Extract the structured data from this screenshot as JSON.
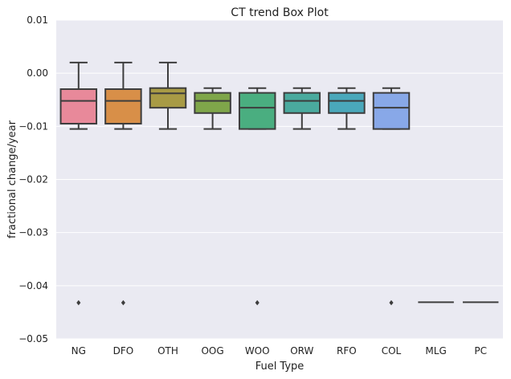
{
  "chart_data": {
    "type": "box",
    "title": "CT trend Box Plot",
    "xlabel": "Fuel Type",
    "ylabel": "fractional change/year",
    "ylim": [
      -0.05,
      0.01
    ],
    "yticks": [
      0.01,
      0.0,
      -0.01,
      -0.02,
      -0.03,
      -0.04,
      -0.05
    ],
    "ytick_labels": [
      "0.01",
      "0.00",
      "−0.01",
      "−0.02",
      "−0.03",
      "−0.04",
      "−0.05"
    ],
    "grid": true,
    "categories": [
      "NG",
      "DFO",
      "OTH",
      "OOG",
      "WOO",
      "ORW",
      "RFO",
      "COL",
      "MLG",
      "PC"
    ],
    "boxes": [
      {
        "category": "NG",
        "color": "#e8899a",
        "whisker_low": -0.0105,
        "q1": -0.0095,
        "median": -0.0052,
        "q3": -0.003,
        "whisker_high": 0.002,
        "outliers": [
          -0.0432
        ]
      },
      {
        "category": "DFO",
        "color": "#d88f48",
        "whisker_low": -0.0105,
        "q1": -0.0095,
        "median": -0.0052,
        "q3": -0.003,
        "whisker_high": 0.002,
        "outliers": [
          -0.0432
        ]
      },
      {
        "category": "OTH",
        "color": "#a89b45",
        "whisker_low": -0.0105,
        "q1": -0.0065,
        "median": -0.0038,
        "q3": -0.0028,
        "whisker_high": 0.002,
        "outliers": []
      },
      {
        "category": "OOG",
        "color": "#7fa64a",
        "whisker_low": -0.0105,
        "q1": -0.0075,
        "median": -0.0052,
        "q3": -0.0037,
        "whisker_high": -0.0028,
        "outliers": []
      },
      {
        "category": "WOO",
        "color": "#4aae80",
        "whisker_low": -0.0105,
        "q1": -0.0105,
        "median": -0.0065,
        "q3": -0.0037,
        "whisker_high": -0.0028,
        "outliers": [
          -0.0432
        ]
      },
      {
        "category": "ORW",
        "color": "#4aaa9e",
        "whisker_low": -0.0105,
        "q1": -0.0075,
        "median": -0.0052,
        "q3": -0.0037,
        "whisker_high": -0.0028,
        "outliers": []
      },
      {
        "category": "RFO",
        "color": "#4aa8bb",
        "whisker_low": -0.0105,
        "q1": -0.0075,
        "median": -0.0052,
        "q3": -0.0037,
        "whisker_high": -0.0028,
        "outliers": []
      },
      {
        "category": "COL",
        "color": "#88a8e8",
        "whisker_low": -0.0105,
        "q1": -0.0105,
        "median": -0.0065,
        "q3": -0.0037,
        "whisker_high": -0.0028,
        "outliers": [
          -0.0432
        ]
      },
      {
        "category": "MLG",
        "color": "#c896e0",
        "whisker_low": -0.0431,
        "q1": -0.0431,
        "median": -0.0431,
        "q3": -0.0431,
        "whisker_high": -0.0431,
        "outliers": []
      },
      {
        "category": "PC",
        "color": "#e08fc8",
        "whisker_low": -0.0431,
        "q1": -0.0431,
        "median": -0.0431,
        "q3": -0.0431,
        "whisker_high": -0.0431,
        "outliers": []
      }
    ]
  }
}
